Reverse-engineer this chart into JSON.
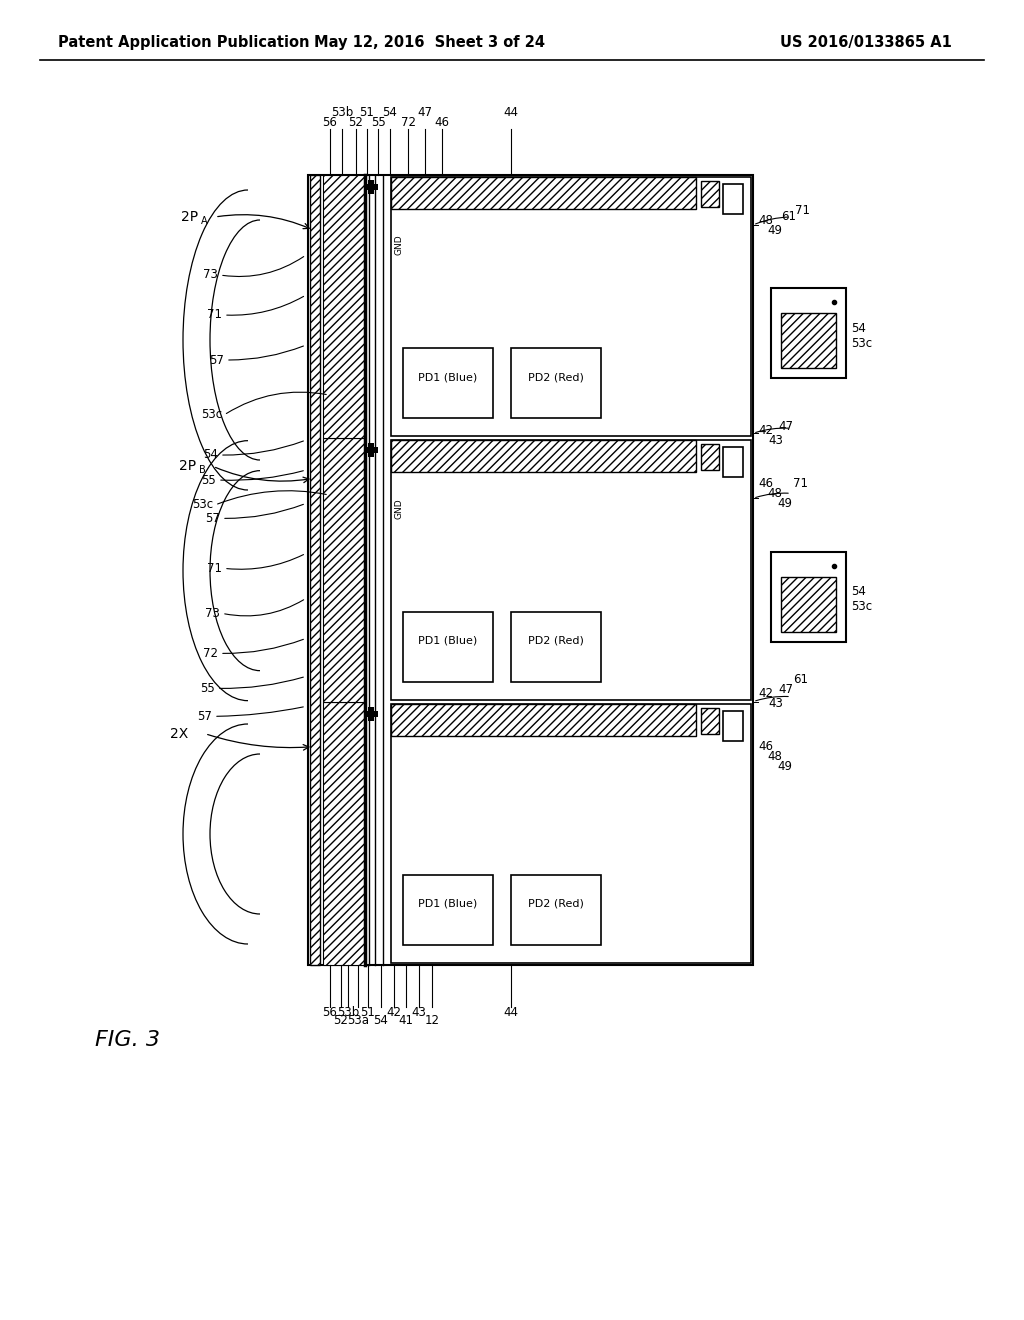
{
  "bg_color": "#ffffff",
  "header_left": "Patent Application Publication",
  "header_mid": "May 12, 2016  Sheet 3 of 24",
  "header_right": "US 2016/0133865 A1",
  "fig_label": "FIG. 3"
}
